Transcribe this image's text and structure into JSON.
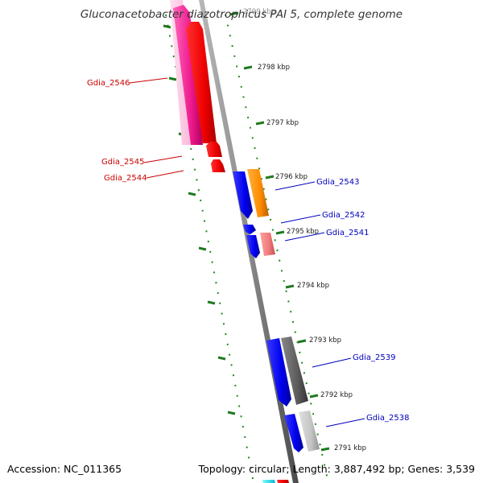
{
  "header": {
    "title": "Gluconacetobacter diazotrophicus PAI 5, complete genome"
  },
  "footer": {
    "accession": "Accession: NC_011365",
    "summary": "Topology: circular; Length: 3,887,492 bp; Genes: 3,539"
  },
  "colors": {
    "forward_label": "#cc0000",
    "reverse_label": "#0000bb",
    "backbone": "#8a8a8a",
    "ticks": "#228822"
  },
  "tick_labels": [
    "2799 kbp",
    "2798 kbp",
    "2797 kbp",
    "2796 kbp",
    "2795 kbp",
    "2794 kbp",
    "2793 kbp",
    "2792 kbp",
    "2791 kbp"
  ],
  "gene_labels": [
    {
      "name": "Gdia_2546",
      "strand": "forward"
    },
    {
      "name": "Gdia_2545",
      "strand": "forward"
    },
    {
      "name": "Gdia_2544",
      "strand": "forward"
    },
    {
      "name": "Gdia_2543",
      "strand": "reverse"
    },
    {
      "name": "Gdia_2542",
      "strand": "reverse"
    },
    {
      "name": "Gdia_2541",
      "strand": "reverse"
    },
    {
      "name": "Gdia_2539",
      "strand": "reverse"
    },
    {
      "name": "Gdia_2538",
      "strand": "reverse"
    }
  ]
}
